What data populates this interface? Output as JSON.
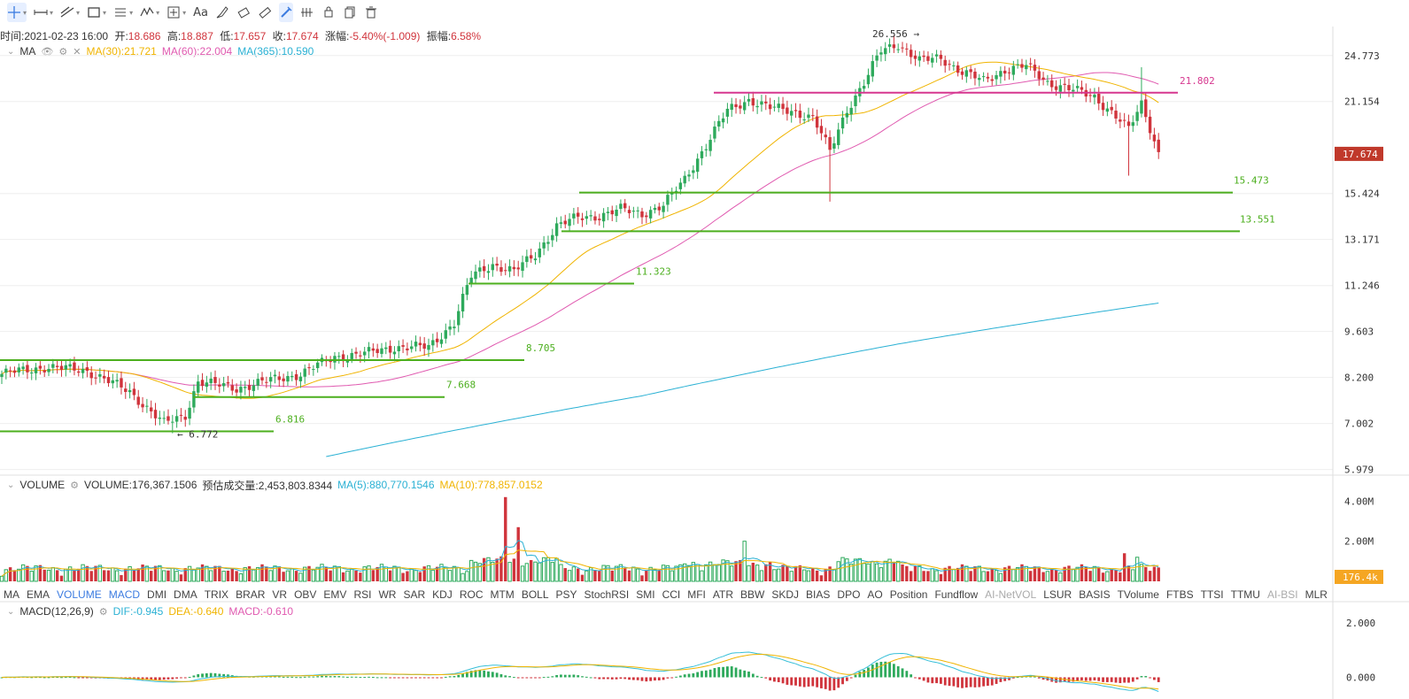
{
  "toolbar": {
    "tools": [
      {
        "name": "crosshair-icon",
        "caret": true,
        "active": true
      },
      {
        "name": "horizontal-ray-icon",
        "caret": true
      },
      {
        "name": "trend-line-icon",
        "caret": true
      },
      {
        "name": "rectangle-icon",
        "caret": true
      },
      {
        "name": "fib-icon",
        "caret": true
      },
      {
        "name": "wave-icon",
        "caret": true
      },
      {
        "name": "measure-icon",
        "caret": true
      },
      {
        "name": "text-icon",
        "label": "Aa"
      },
      {
        "name": "brush-icon"
      },
      {
        "name": "eraser-icon"
      },
      {
        "name": "ruler-icon"
      },
      {
        "name": "magnet-icon",
        "active": true
      },
      {
        "name": "lock-icon"
      },
      {
        "name": "hide-icon"
      },
      {
        "name": "copy-icon"
      },
      {
        "name": "trash-icon"
      }
    ]
  },
  "info": {
    "time_label": "时间:2021-02-23 16:00",
    "open_label": "开:",
    "open": "18.686",
    "high_label": "高:",
    "high": "18.887",
    "low_label": "低:",
    "low": "17.657",
    "close_label": "收:",
    "close": "17.674",
    "change_label": "涨幅:",
    "change": "-5.40%(-1.009)",
    "amp_label": "振幅:",
    "amp": "6.58%"
  },
  "ma_legend": {
    "name": "MA",
    "ma30": "MA(30):21.721",
    "ma60": "MA(60):22.004",
    "ma365": "MA(365):10.590"
  },
  "volume_legend": {
    "name": "VOLUME",
    "volume": "VOLUME:176,367.1506",
    "est": "预估成交量:2,453,803.8344",
    "ma5": "MA(5):880,770.1546",
    "ma10": "MA(10):778,857.0152"
  },
  "macd_legend": {
    "name": "MACD(12,26,9)",
    "dif": "DIF:-0.945",
    "dea": "DEA:-0.640",
    "macd": "MACD:-0.610"
  },
  "indicator_tabs": [
    "MA",
    "EMA",
    "VOLUME",
    "MACD",
    "DMI",
    "DMA",
    "TRIX",
    "BRAR",
    "VR",
    "OBV",
    "EMV",
    "RSI",
    "WR",
    "SAR",
    "KDJ",
    "ROC",
    "MTM",
    "BOLL",
    "PSY",
    "StochRSI",
    "SMI",
    "CCI",
    "MFI",
    "ATR",
    "BBW",
    "SKDJ",
    "BIAS",
    "DPO",
    "AO",
    "Position",
    "Fundflow",
    "AI-NetVOL",
    "LSUR",
    "BASIS",
    "TVolume",
    "FTBS",
    "TTSI",
    "TTMU",
    "AI-BSI",
    "MLR"
  ],
  "active_tabs": [
    "VOLUME",
    "MACD"
  ],
  "disabled_tabs": [
    "AI-NetVOL",
    "AI-BSI"
  ],
  "price_axis": {
    "ticks": [
      {
        "value": 24.773,
        "label": "24.773"
      },
      {
        "value": 21.154,
        "label": "21.154"
      },
      {
        "value": 15.424,
        "label": "15.424"
      },
      {
        "value": 13.171,
        "label": "13.171"
      },
      {
        "value": 11.246,
        "label": "11.246"
      },
      {
        "value": 9.603,
        "label": "9.603"
      },
      {
        "value": 8.2,
        "label": "8.200"
      },
      {
        "value": 7.002,
        "label": "7.002"
      },
      {
        "value": 5.979,
        "label": "5.979"
      }
    ],
    "current_price": "17.674",
    "current_color": "#c0392b"
  },
  "volume_axis": {
    "ticks": [
      {
        "value": 4.0,
        "label": "4.00M"
      },
      {
        "value": 2.0,
        "label": "2.00M"
      }
    ],
    "current": "176.4k",
    "current_color": "#f5a623"
  },
  "macd_axis": {
    "ticks": [
      {
        "value": 2.0,
        "label": "2.000"
      },
      {
        "value": 0.0,
        "label": "0.000"
      }
    ]
  },
  "annotations": {
    "high": "26.556",
    "low": "6.772",
    "levels": [
      {
        "price": 21.802,
        "label": "21.802",
        "color": "#d6378f"
      },
      {
        "price": 15.473,
        "label": "15.473",
        "color": "#4caf1e"
      },
      {
        "price": 13.551,
        "label": "13.551",
        "color": "#4caf1e"
      },
      {
        "price": 11.323,
        "label": "11.323",
        "color": "#4caf1e"
      },
      {
        "price": 8.705,
        "label": "8.705",
        "color": "#4caf1e"
      },
      {
        "price": 7.668,
        "label": "7.668",
        "color": "#4caf1e"
      },
      {
        "price": 6.816,
        "label": "6.816",
        "color": "#4caf1e"
      }
    ]
  },
  "colors": {
    "up": "#2eaa5c",
    "down": "#d0343c",
    "ma30": "#f0b400",
    "ma60": "#e05ab0",
    "ma365": "#2bb1d4",
    "dif": "#37bfd8",
    "dea": "#f0b400",
    "grid": "#eeeeee"
  },
  "chart_data": {
    "type": "candlestick",
    "title": "",
    "price_range": [
      5.9,
      27.2
    ],
    "anchors": [
      {
        "i": 0,
        "p": 8.3
      },
      {
        "i": 10,
        "p": 8.5
      },
      {
        "i": 20,
        "p": 8.4
      },
      {
        "i": 30,
        "p": 7.8
      },
      {
        "i": 38,
        "p": 7.0
      },
      {
        "i": 43,
        "p": 7.2
      },
      {
        "i": 46,
        "p": 8.1
      },
      {
        "i": 50,
        "p": 8.0
      },
      {
        "i": 55,
        "p": 7.9
      },
      {
        "i": 62,
        "p": 8.1
      },
      {
        "i": 70,
        "p": 8.3
      },
      {
        "i": 78,
        "p": 8.8
      },
      {
        "i": 85,
        "p": 8.9
      },
      {
        "i": 92,
        "p": 9.1
      },
      {
        "i": 100,
        "p": 9.1
      },
      {
        "i": 106,
        "p": 9.9
      },
      {
        "i": 110,
        "p": 11.6
      },
      {
        "i": 115,
        "p": 12.1
      },
      {
        "i": 120,
        "p": 11.8
      },
      {
        "i": 125,
        "p": 12.5
      },
      {
        "i": 130,
        "p": 13.8
      },
      {
        "i": 135,
        "p": 14.2
      },
      {
        "i": 140,
        "p": 14.3
      },
      {
        "i": 145,
        "p": 14.6
      },
      {
        "i": 150,
        "p": 14.4
      },
      {
        "i": 155,
        "p": 14.8
      },
      {
        "i": 160,
        "p": 16.2
      },
      {
        "i": 165,
        "p": 18.2
      },
      {
        "i": 170,
        "p": 20.5
      },
      {
        "i": 175,
        "p": 21.3
      },
      {
        "i": 180,
        "p": 20.7
      },
      {
        "i": 185,
        "p": 20.5
      },
      {
        "i": 190,
        "p": 20.0
      },
      {
        "i": 194,
        "p": 17.8
      },
      {
        "i": 198,
        "p": 20.6
      },
      {
        "i": 202,
        "p": 22.5
      },
      {
        "i": 206,
        "p": 25.2
      },
      {
        "i": 210,
        "p": 25.8
      },
      {
        "i": 215,
        "p": 24.3
      },
      {
        "i": 220,
        "p": 24.6
      },
      {
        "i": 225,
        "p": 23.4
      },
      {
        "i": 230,
        "p": 22.7
      },
      {
        "i": 235,
        "p": 23.6
      },
      {
        "i": 240,
        "p": 23.9
      },
      {
        "i": 245,
        "p": 22.6
      },
      {
        "i": 250,
        "p": 22.1
      },
      {
        "i": 256,
        "p": 21.5
      },
      {
        "i": 260,
        "p": 20.4
      },
      {
        "i": 264,
        "p": 19.2
      },
      {
        "i": 267,
        "p": 21.0
      },
      {
        "i": 271,
        "p": 17.7
      }
    ],
    "ma365": [
      {
        "i": 76,
        "p": 6.25
      },
      {
        "i": 150,
        "p": 7.7
      },
      {
        "i": 210,
        "p": 9.2
      },
      {
        "i": 271,
        "p": 10.59
      }
    ],
    "volume_range": [
      0,
      4.5
    ],
    "macd_range": [
      -0.8,
      2.3
    ],
    "bars": 272
  }
}
